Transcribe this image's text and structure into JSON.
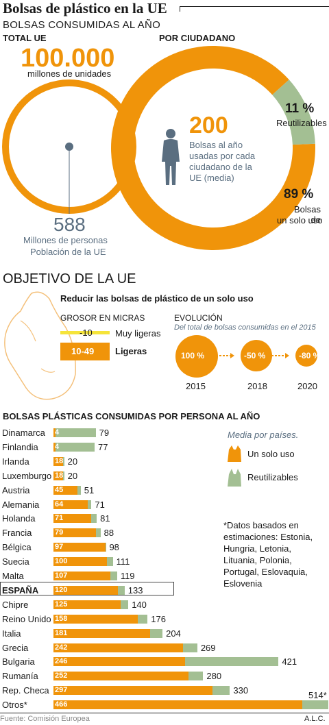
{
  "title": "Bolsas de plástico en la UE",
  "subtitle": "BOLSAS CONSUMIDAS AL AÑO",
  "total_ue": {
    "header": "TOTAL UE",
    "value": "100.000",
    "unit": "millones de unidades",
    "population_value": "588",
    "population_line1": "Millones de personas",
    "population_line2": "Población de la UE"
  },
  "per_citizen": {
    "header": "POR CIUDADANO",
    "value": "200",
    "description": "Bolsas al año usadas por cada ciudadano de la UE (media)",
    "reusable_pct": "11 %",
    "reusable_label": "Reutilizables",
    "single_pct": "89 %",
    "single_label_line1": "Bolsas de",
    "single_label_line2": "un solo uso"
  },
  "objective": {
    "title": "OBJETIVO DE LA UE",
    "reduce_title": "Reducir las bolsas de plástico de un solo uso",
    "thickness_title": "GROSOR EN MICRAS",
    "thickness": [
      {
        "range": "-10",
        "label": "Muy ligeras"
      },
      {
        "range": "10-49",
        "label": "Ligeras"
      }
    ],
    "evolution_title": "EVOLUCIÓN",
    "evolution_subtitle": "Del total de bolsas consumidas en el 2015",
    "evolution": [
      {
        "pct": "100 %",
        "year": "2015"
      },
      {
        "pct": "-50 %",
        "year": "2018"
      },
      {
        "pct": "-80 %",
        "year": "2020"
      }
    ]
  },
  "legend": {
    "title": "Media por países.",
    "single": "Un solo uso",
    "reusable": "Reutilizables"
  },
  "notes": "*Datos basados en estimaciones: Estonia, Hungria, Letonia, Lituania, Polonia, Portugal, Eslovaquia, Eslovenia",
  "source": "Fuente: Comisión Europea",
  "author": "A.L.C.",
  "colors": {
    "orange": "#f0940a",
    "green": "#a3bf93",
    "slate": "#5a6e80"
  },
  "chart_data": {
    "type": "bar",
    "title": "BOLSAS PLÁSTICAS CONSUMIDAS POR PERSONA AL AÑO",
    "orientation": "horizontal",
    "stacked": true,
    "categories": [
      "Dinamarca",
      "Finlandia",
      "Irlanda",
      "Luxemburgo",
      "Austria",
      "Alemania",
      "Holanda",
      "Francia",
      "Bélgica",
      "Suecia",
      "Malta",
      "ESPAÑA",
      "Chipre",
      "Reino Unido",
      "Italia",
      "Grecia",
      "Bulgaria",
      "Rumanía",
      "Rep. Checa",
      "Otros*"
    ],
    "totals": [
      "79",
      "77",
      "20",
      "20",
      "51",
      "71",
      "81",
      "88",
      "98",
      "111",
      "119",
      "133",
      "140",
      "176",
      "204",
      "269",
      "421",
      "280",
      "330",
      "514*"
    ],
    "series": [
      {
        "name": "Un solo uso",
        "values": [
          4,
          4,
          18,
          18,
          45,
          64,
          71,
          79,
          97,
          100,
          107,
          120,
          125,
          158,
          181,
          242,
          246,
          252,
          297,
          466
        ]
      },
      {
        "name": "Reutilizables",
        "values": [
          75,
          73,
          2,
          2,
          6,
          7,
          10,
          9,
          1,
          11,
          12,
          13,
          15,
          18,
          23,
          27,
          175,
          28,
          33,
          48
        ]
      }
    ],
    "highlight": "ESPAÑA"
  }
}
